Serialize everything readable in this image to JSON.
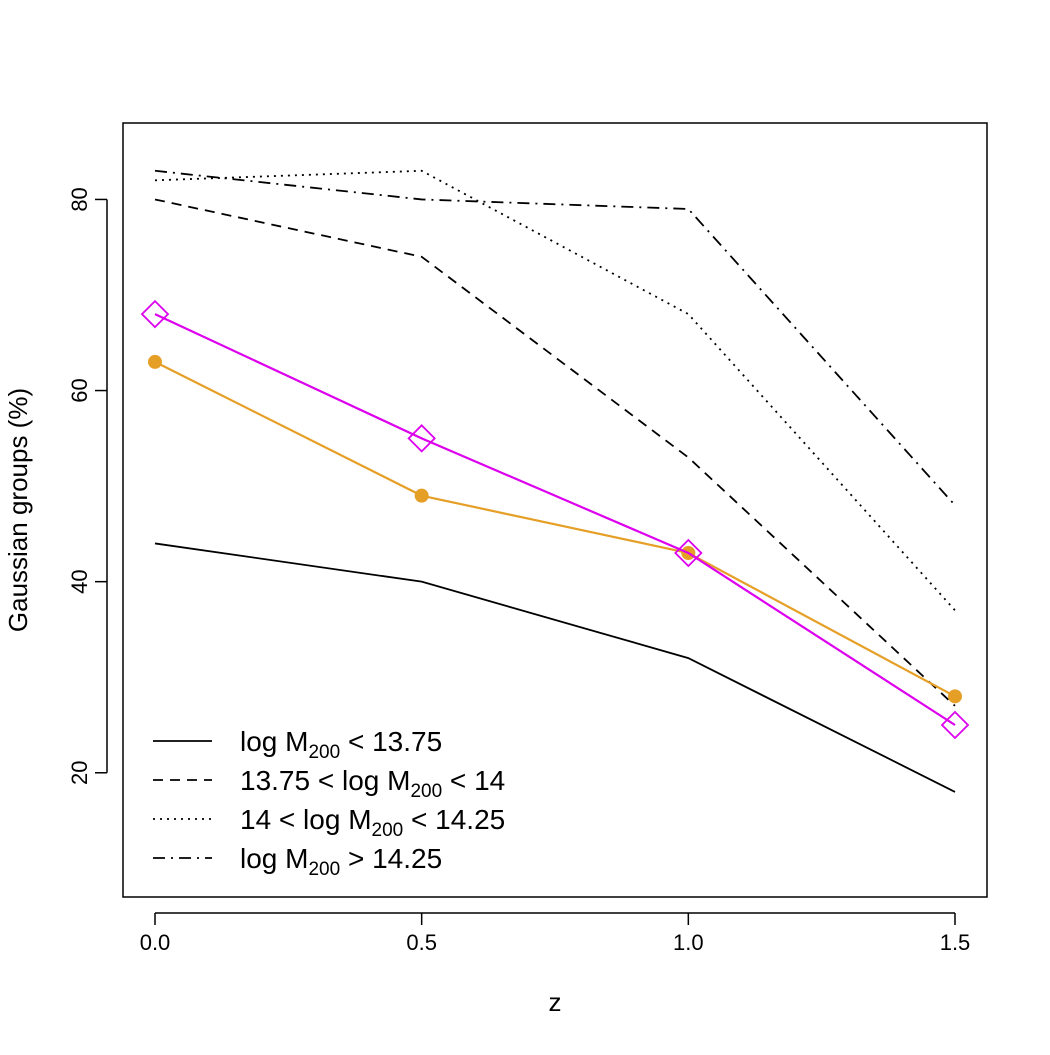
{
  "chart_data": {
    "type": "line",
    "title": "",
    "xlabel": "z",
    "ylabel": "Gaussian groups (%)",
    "xlim": [
      -0.06,
      1.56
    ],
    "ylim": [
      7,
      88
    ],
    "x": [
      0.0,
      0.5,
      1.0,
      1.5
    ],
    "xticks": [
      0.0,
      0.5,
      1.0,
      1.5
    ],
    "xtick_labels": [
      "0.0",
      "0.5",
      "1.0",
      "1.5"
    ],
    "yticks": [
      20,
      40,
      60,
      80
    ],
    "ytick_labels": [
      "20",
      "40",
      "60",
      "80"
    ],
    "grid": false,
    "legend_position": "bottom-left",
    "series": [
      {
        "name": "log M200 < 13.75",
        "style": "solid",
        "color": "#000000",
        "marker": "none",
        "values": [
          44,
          40,
          32,
          18
        ]
      },
      {
        "name": "13.75 < log M200 < 14",
        "style": "dashed",
        "color": "#000000",
        "marker": "none",
        "values": [
          80,
          74,
          53,
          27
        ]
      },
      {
        "name": "14 < log M200 < 14.25",
        "style": "dotted",
        "color": "#000000",
        "marker": "none",
        "values": [
          82,
          83,
          68,
          37
        ]
      },
      {
        "name": "log M200 > 14.25",
        "style": "dashdot",
        "color": "#000000",
        "marker": "none",
        "values": [
          83,
          80,
          79,
          48
        ]
      },
      {
        "name": "orange series",
        "style": "solid",
        "color": "#E69F26",
        "marker": "circle",
        "values": [
          63,
          49,
          43,
          28
        ]
      },
      {
        "name": "magenta series",
        "style": "solid",
        "color": "#DD00EE",
        "marker": "diamond",
        "values": [
          68,
          55,
          43,
          25
        ]
      }
    ],
    "legend": [
      {
        "pre": "log M",
        "sub": "200",
        "post": " < 13.75",
        "style": "solid"
      },
      {
        "pre": "13.75 < log M",
        "sub": "200",
        "post": " < 14",
        "style": "dashed"
      },
      {
        "pre": "14 < log M",
        "sub": "200",
        "post": " < 14.25",
        "style": "dotted"
      },
      {
        "pre": "log M",
        "sub": "200",
        "post": " > 14.25",
        "style": "dashdot"
      }
    ]
  }
}
